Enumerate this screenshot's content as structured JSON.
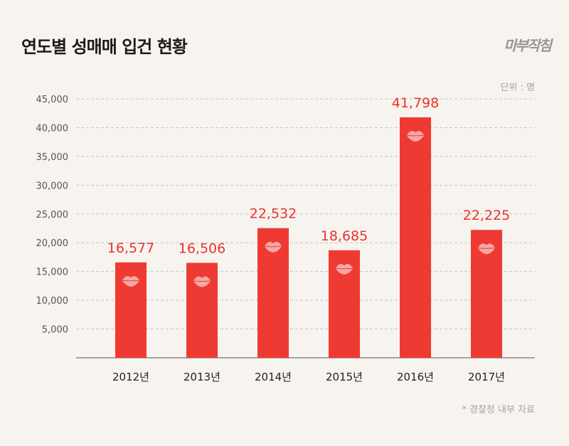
{
  "header": {
    "title": "연도별 성매매 입건 현황",
    "logo": "마부작침"
  },
  "unit_label": "단위 : 명",
  "source_label": "* 경찰청 내부 자료",
  "colors": {
    "bar": "#ee3a33",
    "label": "#e8342f",
    "lips": "#f6a9a3",
    "background": "#f7f3ef",
    "grid": "#c9c4c1"
  },
  "chart_data": {
    "type": "bar",
    "title": "연도별 성매매 입건 현황",
    "categories": [
      "2012년",
      "2013년",
      "2014년",
      "2015년",
      "2016년",
      "2017년"
    ],
    "values": [
      16577,
      16506,
      22532,
      18685,
      41798,
      22225
    ],
    "value_labels": [
      "16,577",
      "16,506",
      "22,532",
      "18,685",
      "41,798",
      "22,225"
    ],
    "yticks": [
      "5,000",
      "10,000",
      "15,000",
      "20,000",
      "25,000",
      "30,000",
      "35,000",
      "40,000",
      "45,000"
    ],
    "ytick_values": [
      5000,
      10000,
      15000,
      20000,
      25000,
      30000,
      35000,
      40000,
      45000
    ],
    "ylim": [
      0,
      45000
    ],
    "grid": true,
    "bar_icon": "lips-icon"
  }
}
